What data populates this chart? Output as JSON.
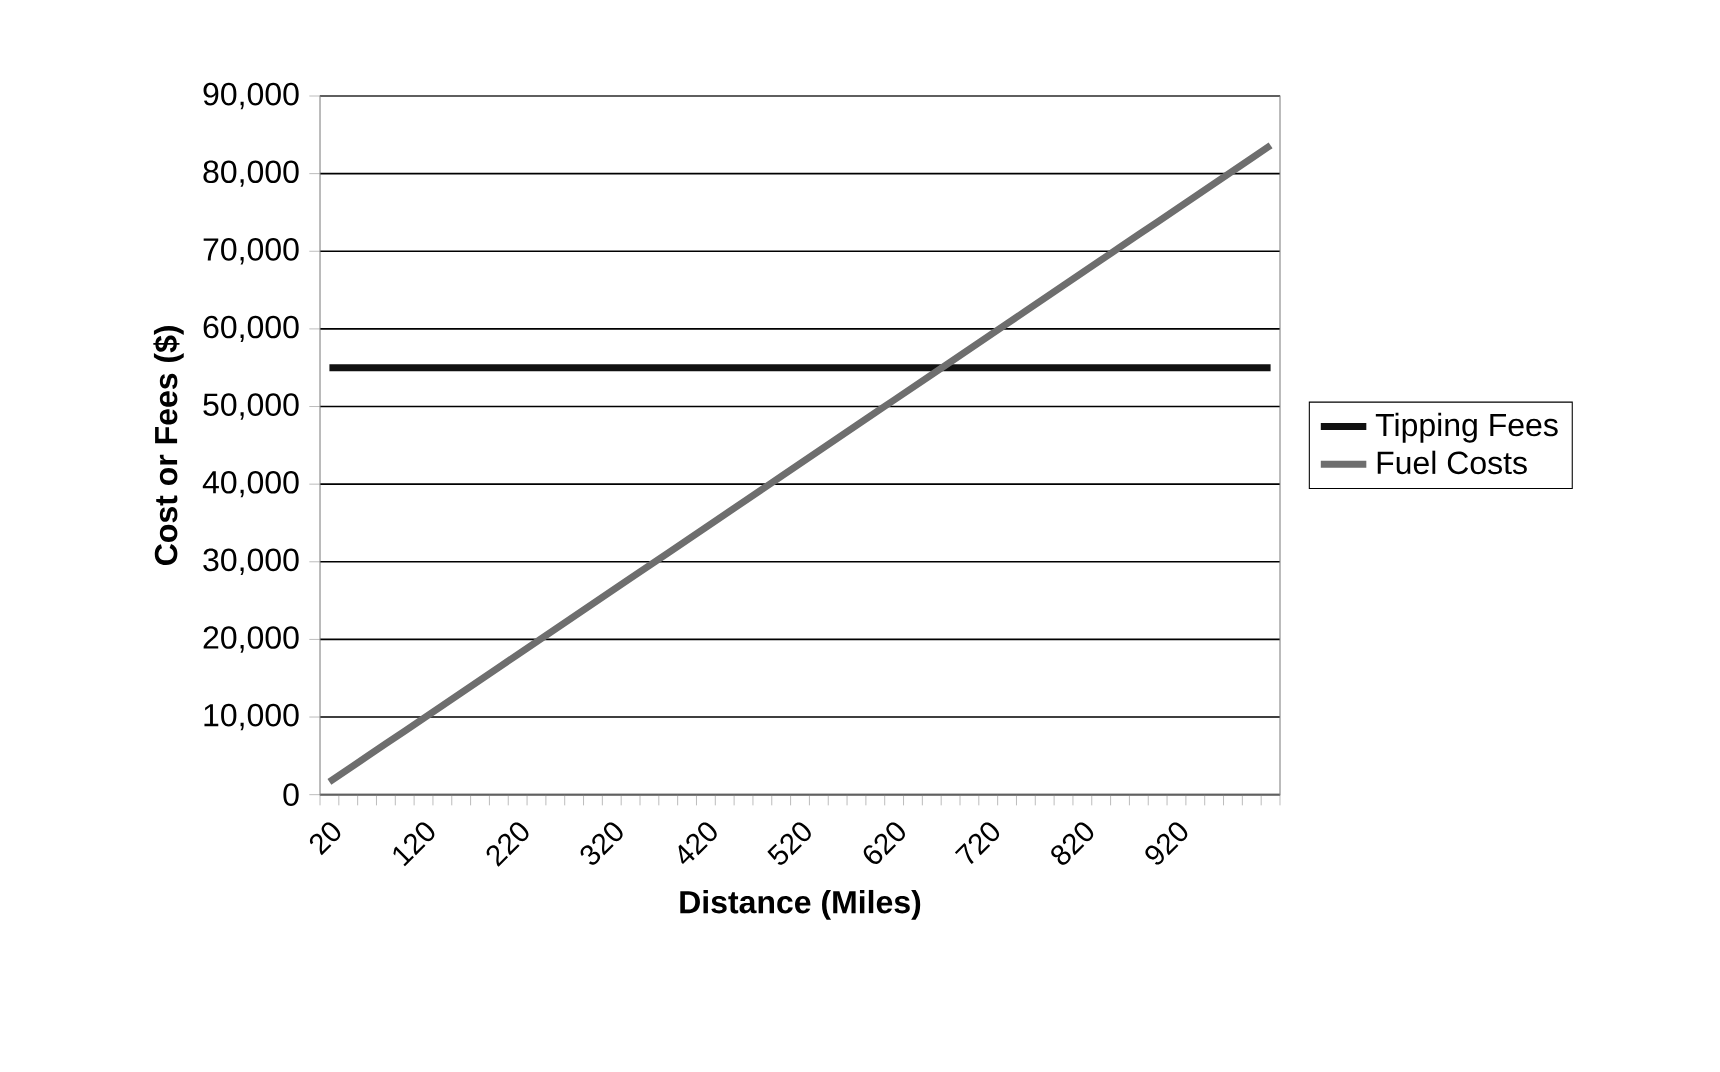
{
  "chart_data": {
    "type": "line",
    "xlabel": "Distance (Miles)",
    "ylabel": "Cost or Fees ($)",
    "categories": [
      "20",
      null,
      null,
      null,
      null,
      "120",
      null,
      null,
      null,
      null,
      "220",
      null,
      null,
      null,
      null,
      "320",
      null,
      null,
      null,
      null,
      "420",
      null,
      null,
      null,
      null,
      "520",
      null,
      null,
      null,
      null,
      "620",
      null,
      null,
      null,
      null,
      "720",
      null,
      null,
      null,
      null,
      "820",
      null,
      null,
      null,
      null,
      "920",
      null,
      null,
      null,
      null,
      null
    ],
    "series": [
      {
        "name": "Tipping Fees",
        "color": "#111111",
        "values": [
          55000,
          55000,
          55000,
          55000,
          55000,
          55000,
          55000,
          55000,
          55000,
          55000,
          55000,
          55000,
          55000,
          55000,
          55000,
          55000,
          55000,
          55000,
          55000,
          55000,
          55000,
          55000,
          55000,
          55000,
          55000,
          55000,
          55000,
          55000,
          55000,
          55000,
          55000,
          55000,
          55000,
          55000,
          55000,
          55000,
          55000,
          55000,
          55000,
          55000,
          55000,
          55000,
          55000,
          55000,
          55000,
          55000,
          55000,
          55000,
          55000,
          55000,
          55000
        ]
      },
      {
        "name": "Fuel Costs",
        "color": "#6e6e6e",
        "values": [
          1640,
          3280,
          4920,
          6560,
          8200,
          9840,
          11480,
          13120,
          14760,
          16400,
          18040,
          19680,
          21320,
          22960,
          24600,
          26240,
          27880,
          29520,
          31160,
          32800,
          34440,
          36080,
          37720,
          39360,
          41000,
          42640,
          44280,
          45920,
          47560,
          49200,
          50840,
          52480,
          54120,
          55760,
          57400,
          59040,
          60680,
          62320,
          63960,
          65600,
          67240,
          68880,
          70520,
          72160,
          73800,
          75440,
          77080,
          78720,
          80360,
          82000,
          83640
        ]
      }
    ],
    "ylim": [
      0,
      90000
    ],
    "yticks": [
      {
        "value": 0,
        "label": "0"
      },
      {
        "value": 10000,
        "label": "10,000"
      },
      {
        "value": 20000,
        "label": "20,000"
      },
      {
        "value": 30000,
        "label": "30,000"
      },
      {
        "value": 40000,
        "label": "40,000"
      },
      {
        "value": 50000,
        "label": "50,000"
      },
      {
        "value": 60000,
        "label": "60,000"
      },
      {
        "value": 70000,
        "label": "70,000"
      },
      {
        "value": 80000,
        "label": "80,000"
      },
      {
        "value": 90000,
        "label": "90,000"
      }
    ],
    "grid": "y",
    "legend": "right"
  }
}
